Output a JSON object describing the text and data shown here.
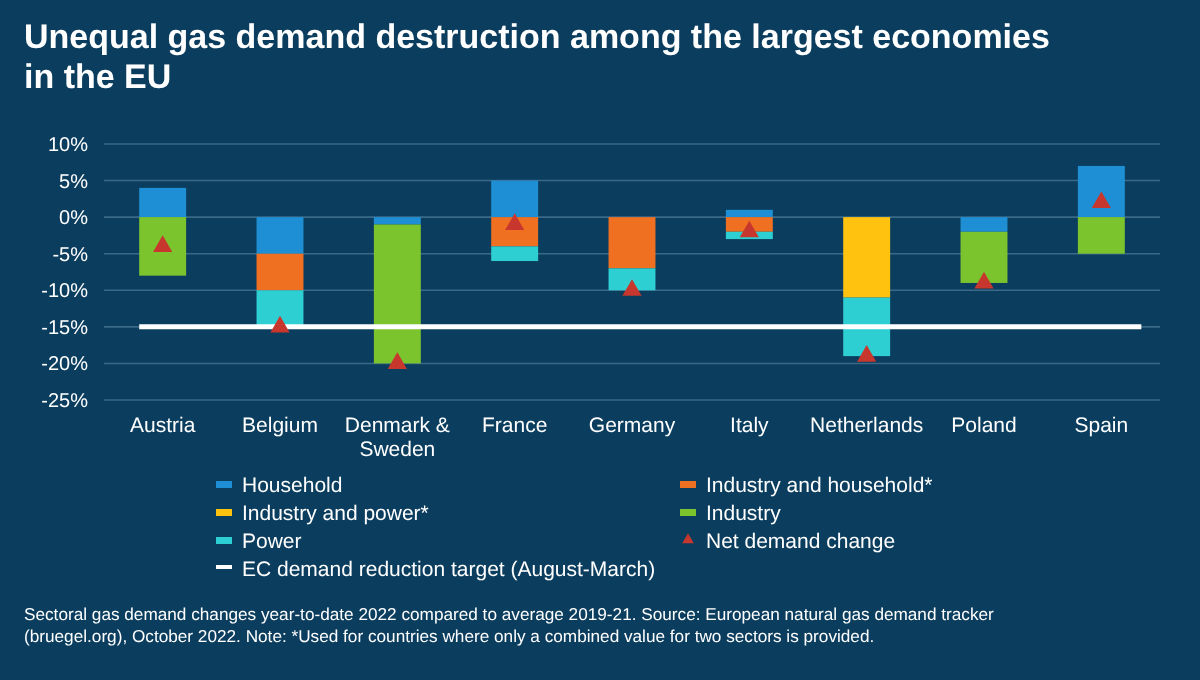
{
  "chart_data": {
    "type": "bar",
    "title": "Unequal gas demand destruction among the largest economies in the EU",
    "categories": [
      "Austria",
      "Belgium",
      "Denmark & Sweden",
      "France",
      "Germany",
      "Italy",
      "Netherlands",
      "Poland",
      "Spain"
    ],
    "stacked": true,
    "series": [
      {
        "name": "Household",
        "color": "#1e8fd5",
        "values": [
          4,
          -5,
          -1,
          5,
          null,
          1,
          null,
          -2,
          7
        ]
      },
      {
        "name": "Industry and household*",
        "color": "#f07022",
        "values": [
          null,
          -5,
          null,
          -4,
          -7,
          -2,
          null,
          null,
          null
        ]
      },
      {
        "name": "Industry and power*",
        "color": "#ffc20e",
        "values": [
          null,
          null,
          null,
          null,
          null,
          null,
          -11,
          null,
          null
        ]
      },
      {
        "name": "Industry",
        "color": "#7cc42e",
        "values": [
          -8,
          null,
          -19,
          null,
          null,
          null,
          null,
          -7,
          -5
        ]
      },
      {
        "name": "Power",
        "color": "#2ecfd2",
        "values": [
          null,
          -5,
          null,
          -2,
          -3,
          -1,
          -8,
          null,
          null
        ]
      },
      {
        "name": "Net demand change",
        "type": "scatter",
        "marker": "triangle",
        "color": "#c8372d",
        "x": [
          "Austria",
          "Belgium",
          "Denmark & Sweden",
          "France",
          "Germany",
          "Italy",
          "Netherlands",
          "Poland",
          "Spain"
        ],
        "values": [
          -4,
          -15,
          -20,
          -1,
          -10,
          -2,
          -19,
          -9,
          2
        ]
      }
    ],
    "ylim": [
      -25,
      10
    ],
    "yticks": [
      {
        "value": -25,
        "label": "-25%"
      },
      {
        "value": -20,
        "label": "-20%"
      },
      {
        "value": -15,
        "label": "-15%"
      },
      {
        "value": -10,
        "label": "-10%"
      },
      {
        "value": -5,
        "label": "-5%"
      },
      {
        "value": 0,
        "label": "0%"
      },
      {
        "value": 5,
        "label": "5%"
      },
      {
        "value": 10,
        "label": "10%"
      }
    ],
    "grid": "y",
    "legend": "bottom",
    "ref_lines": [
      {
        "axis": "y",
        "value": -15,
        "label": "EC demand reduction target (August-March)",
        "color": "#ffffff"
      }
    ],
    "annotations": [
      "Sectoral gas demand changes year-to-date 2022 compared to average 2019-21. Source: European natural gas demand tracker (bruegel.org), October 2022. Note: *Used for countries where only a combined value for two sectors is provided."
    ]
  }
}
